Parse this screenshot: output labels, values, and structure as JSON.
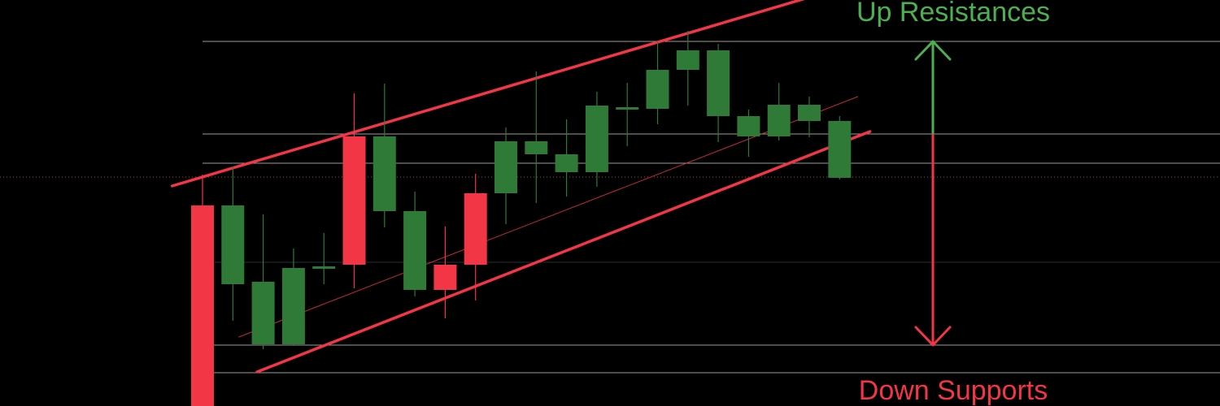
{
  "chart_data": {
    "type": "candlestick",
    "title": "",
    "xlabel": "",
    "ylabel": "",
    "ylim": [
      0,
      500
    ],
    "xlim": [
      0,
      22
    ],
    "grid": false,
    "colors": {
      "background": "#000000",
      "bull": "#2e7a36",
      "bear": "#f23645",
      "channel": "#f23645",
      "up_arrow": "#4caf50",
      "down_arrow": "#f23645",
      "levels": "#cfcfcf",
      "current_price_line": "#b03a2e"
    },
    "candles": [
      {
        "o": 247,
        "h": 285,
        "l": 0,
        "c": 0
      },
      {
        "o": 150,
        "h": 295,
        "l": 105,
        "c": 247
      },
      {
        "o": 76,
        "h": 236,
        "l": 70,
        "c": 153
      },
      {
        "o": 76,
        "h": 194,
        "l": 74,
        "c": 170
      },
      {
        "o": 172,
        "h": 213,
        "l": 150,
        "c": 172
      },
      {
        "o": 332,
        "h": 385,
        "l": 145,
        "c": 174
      },
      {
        "o": 240,
        "h": 397,
        "l": 220,
        "c": 332
      },
      {
        "o": 143,
        "h": 264,
        "l": 135,
        "c": 240
      },
      {
        "o": 174,
        "h": 221,
        "l": 108,
        "c": 143
      },
      {
        "o": 262,
        "h": 286,
        "l": 130,
        "c": 174
      },
      {
        "o": 262,
        "h": 343,
        "l": 224,
        "c": 326
      },
      {
        "o": 310,
        "h": 412,
        "l": 250,
        "c": 326
      },
      {
        "o": 288,
        "h": 353,
        "l": 258,
        "c": 310
      },
      {
        "o": 288,
        "h": 387,
        "l": 270,
        "c": 370
      },
      {
        "o": 368,
        "h": 398,
        "l": 320,
        "c": 368
      },
      {
        "o": 366,
        "h": 449,
        "l": 347,
        "c": 414
      },
      {
        "o": 414,
        "h": 462,
        "l": 370,
        "c": 438
      },
      {
        "o": 357,
        "h": 446,
        "l": 325,
        "c": 438
      },
      {
        "o": 332,
        "h": 365,
        "l": 307,
        "c": 357
      },
      {
        "o": 332,
        "h": 398,
        "l": 327,
        "c": 371
      },
      {
        "o": 351,
        "h": 381,
        "l": 331,
        "c": 371
      },
      {
        "o": 281,
        "h": 357,
        "l": 279,
        "c": 351
      }
    ],
    "horizontal_levels": [
      449,
      335,
      299,
      75,
      41
    ],
    "current_price_level": 282,
    "channel": {
      "upper": [
        [
          -1,
          271
        ],
        [
          20.6,
          510
        ]
      ],
      "lower": [
        [
          1.8,
          42
        ],
        [
          22,
          338
        ]
      ],
      "middle": [
        [
          1.2,
          85
        ],
        [
          21.6,
          381
        ]
      ]
    },
    "arrows": {
      "up": {
        "x": 23.8,
        "from": 335,
        "to": 449
      },
      "down": {
        "x": 23.8,
        "from": 335,
        "to": 75
      }
    },
    "annotations": {
      "up_label": "Up Resistances",
      "down_label": "Down Supports"
    }
  }
}
